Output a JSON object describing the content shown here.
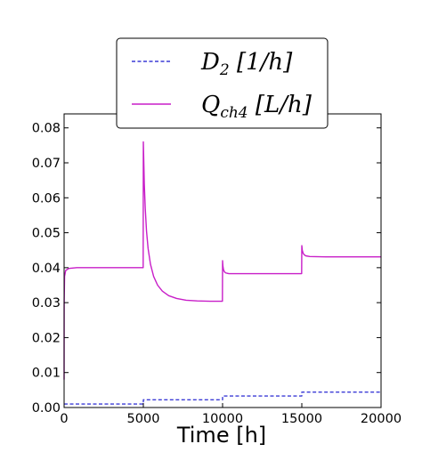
{
  "chart_data": {
    "type": "line",
    "title": "",
    "xlabel": "Time [h]",
    "ylabel": "",
    "xlim": [
      0,
      20000
    ],
    "ylim": [
      0,
      0.084
    ],
    "x_ticks": [
      "0",
      "5000",
      "10000",
      "15000",
      "20000"
    ],
    "y_ticks": [
      "0.00",
      "0.01",
      "0.02",
      "0.03",
      "0.04",
      "0.05",
      "0.06",
      "0.07",
      "0.08"
    ],
    "grid": false,
    "legend_position": "top-center",
    "series": [
      {
        "name": "D_2 [1/h]",
        "label_main": "D",
        "label_sub": "2",
        "label_unit": " [1/h]",
        "color": "#3b3bd6",
        "style": "dashed",
        "x": [
          0,
          5000,
          5000,
          10000,
          10000,
          15000,
          15000,
          20000
        ],
        "y": [
          0.001,
          0.001,
          0.0022,
          0.0022,
          0.0033,
          0.0033,
          0.0044,
          0.0044
        ]
      },
      {
        "name": "Q_ch4 [L/h]",
        "label_main": "Q",
        "label_sub": "ch4",
        "label_unit": " [L/h]",
        "color": "#c81ec8",
        "style": "solid",
        "x": [
          0,
          5,
          30,
          100,
          300,
          800,
          2000,
          4990,
          5000,
          5020,
          5060,
          5120,
          5200,
          5300,
          5450,
          5650,
          5900,
          6200,
          6600,
          7100,
          7700,
          8400,
          9200,
          9990,
          10000,
          10020,
          10060,
          10120,
          10200,
          10400,
          11000,
          12000,
          13500,
          14990,
          15000,
          15030,
          15080,
          15150,
          15250,
          15500,
          16500,
          18000,
          20000
        ],
        "y": [
          0.008,
          0.03,
          0.0375,
          0.0392,
          0.0398,
          0.04,
          0.04,
          0.04,
          0.076,
          0.072,
          0.064,
          0.057,
          0.0505,
          0.0455,
          0.041,
          0.0375,
          0.035,
          0.0333,
          0.032,
          0.0312,
          0.0307,
          0.0305,
          0.0304,
          0.0304,
          0.042,
          0.0405,
          0.0394,
          0.0388,
          0.0385,
          0.0383,
          0.0383,
          0.0383,
          0.0383,
          0.0383,
          0.0463,
          0.045,
          0.0442,
          0.0437,
          0.0434,
          0.0432,
          0.0431,
          0.0431,
          0.0431
        ]
      }
    ]
  }
}
